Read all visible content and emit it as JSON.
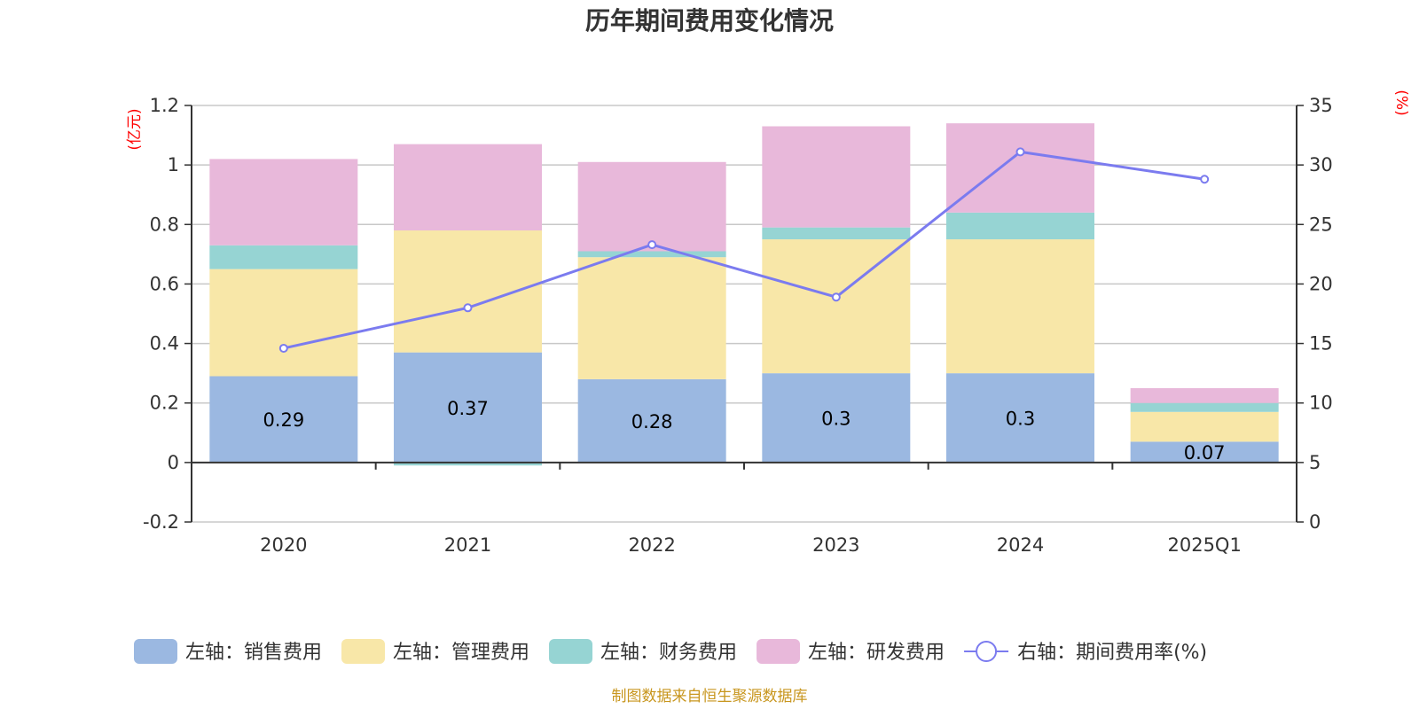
{
  "chart_data": {
    "type": "bar",
    "stacked": true,
    "title": "历年期间费用变化情况",
    "categories": [
      "2020",
      "2021",
      "2022",
      "2023",
      "2024",
      "2025Q1"
    ],
    "left_axis": {
      "unit": "(亿元)",
      "range": [
        -0.2,
        1.2
      ],
      "ticks": [
        "1.2",
        "1",
        "0.8",
        "0.6",
        "0.4",
        "0.2",
        "0",
        "-0.2"
      ]
    },
    "right_axis": {
      "unit": "(%)",
      "range": [
        0,
        35
      ],
      "ticks": [
        "35",
        "30",
        "25",
        "20",
        "15",
        "10",
        "5",
        "0"
      ]
    },
    "series": [
      {
        "name": "左轴：销售费用",
        "axis": "left",
        "color": "#9bb8e1",
        "values": [
          0.29,
          0.37,
          0.28,
          0.3,
          0.3,
          0.07
        ],
        "labels": [
          "0.29",
          "0.37",
          "0.28",
          "0.3",
          "0.3",
          "0.07"
        ]
      },
      {
        "name": "左轴：管理费用",
        "axis": "left",
        "color": "#f8e7a8",
        "values": [
          0.36,
          0.41,
          0.41,
          0.45,
          0.45,
          0.1
        ]
      },
      {
        "name": "左轴：财务费用",
        "axis": "left",
        "color": "#96d4d3",
        "values": [
          0.08,
          -0.01,
          0.02,
          0.04,
          0.09,
          0.03
        ]
      },
      {
        "name": "左轴：研发费用",
        "axis": "left",
        "color": "#e8b8da",
        "values": [
          0.29,
          0.29,
          0.3,
          0.34,
          0.3,
          0.05
        ]
      },
      {
        "name": "右轴：期间费用率(%)",
        "axis": "right",
        "type": "line",
        "color": "#7b7bef",
        "values": [
          14.6,
          18.0,
          23.3,
          18.9,
          31.1,
          28.8
        ]
      }
    ],
    "source": "制图数据来自恒生聚源数据库"
  }
}
